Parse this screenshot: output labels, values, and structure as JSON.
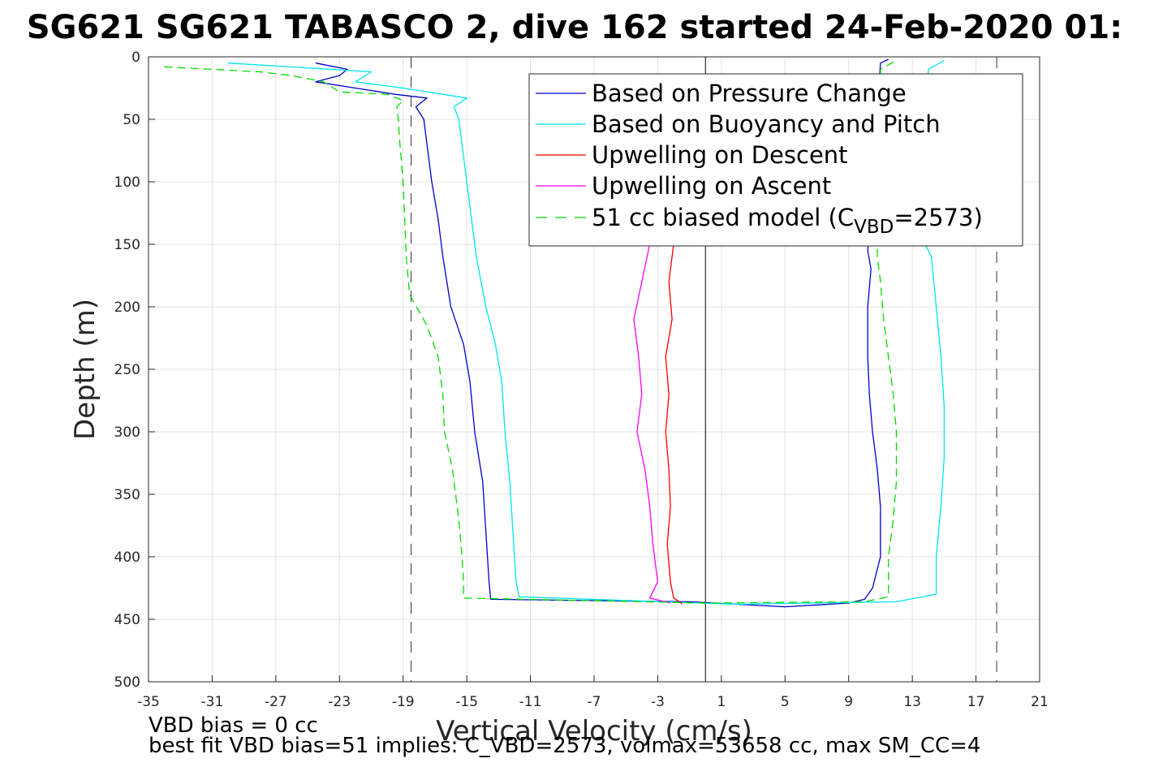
{
  "chart_data": {
    "type": "line",
    "title": "SG621 SG621 TABASCO 2, dive 162 started 24-Feb-2020 01:",
    "xlabel": "Vertical Velocity (cm/s)",
    "ylabel": "Depth (m)",
    "xlim": [
      -35,
      21
    ],
    "ylim": [
      0,
      500
    ],
    "y_reversed": true,
    "grid": true,
    "legend_position": "top-right",
    "x_ticks": [
      -35,
      -31,
      -27,
      -23,
      -19,
      -15,
      -11,
      -7,
      -3,
      1,
      5,
      9,
      13,
      17,
      21
    ],
    "y_ticks": [
      0,
      50,
      100,
      150,
      200,
      250,
      300,
      350,
      400,
      450,
      500
    ],
    "reference_lines": {
      "dashed_black_x": [
        -18.5,
        18.3
      ],
      "solid_black_x": 0
    },
    "series": [
      {
        "name": "Based on Pressure Change",
        "color": "#0000cc",
        "style": "solid",
        "points": [
          [
            -24.5,
            5
          ],
          [
            -22.5,
            10
          ],
          [
            -23,
            15
          ],
          [
            -24.5,
            20
          ],
          [
            -22,
            25
          ],
          [
            -19.5,
            30
          ],
          [
            -17.5,
            33
          ],
          [
            -18.2,
            40
          ],
          [
            -17.7,
            50
          ],
          [
            -17.5,
            70
          ],
          [
            -17.2,
            100
          ],
          [
            -16.8,
            130
          ],
          [
            -16.5,
            160
          ],
          [
            -16,
            200
          ],
          [
            -15.2,
            230
          ],
          [
            -14.8,
            260
          ],
          [
            -14.5,
            300
          ],
          [
            -14,
            340
          ],
          [
            -13.8,
            380
          ],
          [
            -13.6,
            420
          ],
          [
            -13.5,
            434
          ],
          [
            -1,
            436
          ],
          [
            5,
            440
          ],
          [
            9,
            437
          ],
          [
            10,
            434
          ],
          [
            10.5,
            425
          ],
          [
            11,
            400
          ],
          [
            11,
            360
          ],
          [
            10.8,
            330
          ],
          [
            10.5,
            300
          ],
          [
            10.3,
            270
          ],
          [
            10.2,
            240
          ],
          [
            10.2,
            200
          ],
          [
            10.4,
            170
          ],
          [
            10.2,
            155
          ],
          [
            11,
            5
          ],
          [
            11.5,
            2
          ]
        ]
      },
      {
        "name": "Based on Buoyancy and Pitch",
        "color": "#00e5ee",
        "style": "solid",
        "points": [
          [
            -30,
            5
          ],
          [
            -21,
            12
          ],
          [
            -22,
            20
          ],
          [
            -19,
            25
          ],
          [
            -15,
            33
          ],
          [
            -15.8,
            40
          ],
          [
            -15.5,
            50
          ],
          [
            -15.3,
            70
          ],
          [
            -15,
            100
          ],
          [
            -14.7,
            130
          ],
          [
            -14.4,
            160
          ],
          [
            -13.8,
            200
          ],
          [
            -13.2,
            230
          ],
          [
            -12.8,
            260
          ],
          [
            -12.6,
            300
          ],
          [
            -12.3,
            340
          ],
          [
            -12.1,
            380
          ],
          [
            -11.9,
            420
          ],
          [
            -11.7,
            432
          ],
          [
            2,
            438
          ],
          [
            12,
            436
          ],
          [
            14.5,
            430
          ],
          [
            14.5,
            400
          ],
          [
            14.8,
            360
          ],
          [
            15,
            320
          ],
          [
            15,
            280
          ],
          [
            14.8,
            240
          ],
          [
            14.5,
            200
          ],
          [
            14.2,
            160
          ],
          [
            13.8,
            150
          ],
          [
            14,
            10
          ],
          [
            15,
            3
          ]
        ]
      },
      {
        "name": "Upwelling on Descent",
        "color": "#ff0000",
        "style": "solid",
        "points": [
          [
            -2,
            150
          ],
          [
            -2.3,
            180
          ],
          [
            -2.1,
            210
          ],
          [
            -2.5,
            240
          ],
          [
            -2.3,
            270
          ],
          [
            -2.5,
            300
          ],
          [
            -2.3,
            330
          ],
          [
            -2.2,
            360
          ],
          [
            -2.4,
            390
          ],
          [
            -2.2,
            420
          ],
          [
            -2,
            433
          ],
          [
            -1.5,
            437
          ],
          [
            -1.5,
            438
          ]
        ]
      },
      {
        "name": "Upwelling on Ascent",
        "color": "#ff00ff",
        "style": "solid",
        "points": [
          [
            -3.5,
            150
          ],
          [
            -4,
            180
          ],
          [
            -4.5,
            210
          ],
          [
            -4.2,
            240
          ],
          [
            -4,
            270
          ],
          [
            -4.3,
            300
          ],
          [
            -3.8,
            330
          ],
          [
            -3.5,
            360
          ],
          [
            -3.3,
            390
          ],
          [
            -3,
            420
          ],
          [
            -3.5,
            433
          ],
          [
            -2.2,
            437
          ]
        ]
      },
      {
        "name": "51 cc biased model (C_VBD=2573)",
        "color": "#00dd00",
        "style": "dashed",
        "points": [
          [
            -34,
            8
          ],
          [
            -28,
            12
          ],
          [
            -26,
            15
          ],
          [
            -24,
            20
          ],
          [
            -23,
            28
          ],
          [
            -20,
            30
          ],
          [
            -19,
            35
          ],
          [
            -19.4,
            40
          ],
          [
            -19.3,
            50
          ],
          [
            -19.2,
            70
          ],
          [
            -19,
            100
          ],
          [
            -18.9,
            130
          ],
          [
            -18.8,
            160
          ],
          [
            -18.6,
            190
          ],
          [
            -17.5,
            215
          ],
          [
            -16.8,
            240
          ],
          [
            -16.5,
            270
          ],
          [
            -16.4,
            300
          ],
          [
            -15.9,
            330
          ],
          [
            -15.5,
            370
          ],
          [
            -15.3,
            400
          ],
          [
            -15.2,
            420
          ],
          [
            -15.2,
            433
          ],
          [
            0,
            437
          ],
          [
            10,
            436
          ],
          [
            11.5,
            432
          ],
          [
            11.5,
            400
          ],
          [
            11.8,
            370
          ],
          [
            12,
            340
          ],
          [
            12,
            300
          ],
          [
            11.8,
            270
          ],
          [
            11.5,
            240
          ],
          [
            11.2,
            210
          ],
          [
            11,
            180
          ],
          [
            10.8,
            160
          ],
          [
            11,
            10
          ],
          [
            12,
            3
          ]
        ]
      }
    ],
    "legend": {
      "entries": [
        "Based on Pressure Change",
        "Based on Buoyancy and Pitch",
        "Upwelling on Descent",
        "Upwelling on Ascent"
      ],
      "model_prefix": "51 cc biased model (C",
      "model_subscript": "VBD",
      "model_suffix": "=2573)"
    },
    "footer": {
      "line1": "VBD bias = 0 cc",
      "line2": "best fit VBD bias=51 implies: C_VBD=2573, volmax=53658 cc, max SM_CC=4"
    }
  }
}
